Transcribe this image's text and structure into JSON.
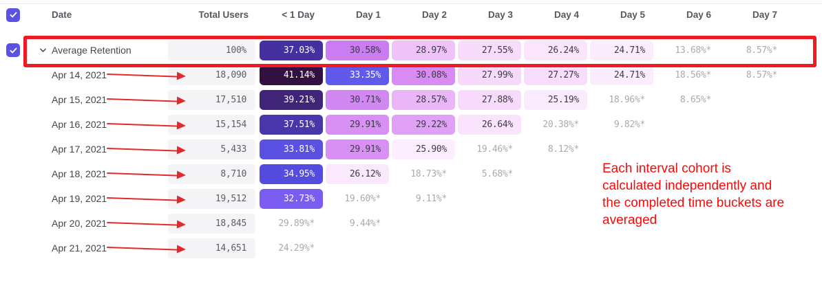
{
  "colors": {
    "checkbox_purple": "#5a52e2",
    "highlight_red": "#ee1b22",
    "arrow_red": "#e02a2b",
    "note_red": "#fb0808",
    "total_cell_bg": "#f4f4f6",
    "dark_text": "#3c3d44",
    "gray_text": "#a9a9b0",
    "white_text": "#ffffff",
    "header_border": "#e9e9eb"
  },
  "table": {
    "columns": [
      "Date",
      "Total Users",
      "< 1 Day",
      "Day 1",
      "Day 2",
      "Day 3",
      "Day 4",
      "Day 5",
      "Day 6",
      "Day 7"
    ],
    "rows": [
      {
        "label": "Average Retention",
        "is_average": true,
        "total": "100%",
        "cells": [
          {
            "v": "37.03%",
            "bg": "#44309e",
            "fg": "#ffffff"
          },
          {
            "v": "30.58%",
            "bg": "#ca7df1",
            "fg": "#3c3d44"
          },
          {
            "v": "28.97%",
            "bg": "#efc2f9",
            "fg": "#3c3d44"
          },
          {
            "v": "27.55%",
            "bg": "#f8dcfc",
            "fg": "#3c3d44"
          },
          {
            "v": "26.24%",
            "bg": "#fae5fd",
            "fg": "#3c3d44"
          },
          {
            "v": "24.71%",
            "bg": "#fcedfe",
            "fg": "#3c3d44"
          },
          {
            "v": "13.68%*",
            "bg": null,
            "fg": "#a9a9b0"
          },
          {
            "v": "8.57%*",
            "bg": null,
            "fg": "#a9a9b0"
          }
        ]
      },
      {
        "label": "Apr 14, 2021",
        "is_average": false,
        "total": "18,090",
        "cells": [
          {
            "v": "41.14%",
            "bg": "#321141",
            "fg": "#ffffff"
          },
          {
            "v": "33.35%",
            "bg": "#5f5aeb",
            "fg": "#ffffff"
          },
          {
            "v": "30.08%",
            "bg": "#d88cf3",
            "fg": "#3c3d44"
          },
          {
            "v": "27.99%",
            "bg": "#f7d9fc",
            "fg": "#3c3d44"
          },
          {
            "v": "27.27%",
            "bg": "#f8ddfc",
            "fg": "#3c3d44"
          },
          {
            "v": "24.71%",
            "bg": "#fcedfe",
            "fg": "#3c3d44"
          },
          {
            "v": "18.56%*",
            "bg": null,
            "fg": "#a9a9b0"
          },
          {
            "v": "8.57%*",
            "bg": null,
            "fg": "#a9a9b0"
          }
        ]
      },
      {
        "label": "Apr 15, 2021",
        "is_average": false,
        "total": "17,510",
        "cells": [
          {
            "v": "39.21%",
            "bg": "#402478",
            "fg": "#ffffff"
          },
          {
            "v": "30.71%",
            "bg": "#d288f3",
            "fg": "#3c3d44"
          },
          {
            "v": "28.57%",
            "bg": "#eab6f8",
            "fg": "#3c3d44"
          },
          {
            "v": "27.88%",
            "bg": "#f7dafc",
            "fg": "#3c3d44"
          },
          {
            "v": "25.19%",
            "bg": "#fbebfe",
            "fg": "#3c3d44"
          },
          {
            "v": "18.96%*",
            "bg": null,
            "fg": "#a9a9b0"
          },
          {
            "v": "8.65%*",
            "bg": null,
            "fg": "#a9a9b0"
          },
          null
        ]
      },
      {
        "label": "Apr 16, 2021",
        "is_average": false,
        "total": "15,154",
        "cells": [
          {
            "v": "37.51%",
            "bg": "#4a36ab",
            "fg": "#ffffff"
          },
          {
            "v": "29.91%",
            "bg": "#d890f4",
            "fg": "#3c3d44"
          },
          {
            "v": "29.22%",
            "bg": "#e0a0f6",
            "fg": "#3c3d44"
          },
          {
            "v": "26.64%",
            "bg": "#fae4fd",
            "fg": "#3c3d44"
          },
          {
            "v": "20.38%*",
            "bg": null,
            "fg": "#a9a9b0"
          },
          {
            "v": "9.82%*",
            "bg": null,
            "fg": "#a9a9b0"
          },
          null,
          null
        ]
      },
      {
        "label": "Apr 17, 2021",
        "is_average": false,
        "total": "5,433",
        "cells": [
          {
            "v": "33.81%",
            "bg": "#5a50e2",
            "fg": "#ffffff"
          },
          {
            "v": "29.91%",
            "bg": "#d890f4",
            "fg": "#3c3d44"
          },
          {
            "v": "25.90%",
            "bg": "#fceefe",
            "fg": "#3c3d44"
          },
          {
            "v": "19.46%*",
            "bg": null,
            "fg": "#a9a9b0"
          },
          {
            "v": "8.12%*",
            "bg": null,
            "fg": "#a9a9b0"
          },
          null,
          null,
          null
        ]
      },
      {
        "label": "Apr 18, 2021",
        "is_average": false,
        "total": "8,710",
        "cells": [
          {
            "v": "34.95%",
            "bg": "#544bdf",
            "fg": "#ffffff"
          },
          {
            "v": "26.12%",
            "bg": "#fae8fd",
            "fg": "#3c3d44"
          },
          {
            "v": "18.73%*",
            "bg": null,
            "fg": "#a9a9b0"
          },
          {
            "v": "5.68%*",
            "bg": null,
            "fg": "#a9a9b0"
          },
          null,
          null,
          null,
          null
        ]
      },
      {
        "label": "Apr 19, 2021",
        "is_average": false,
        "total": "19,512",
        "cells": [
          {
            "v": "32.73%",
            "bg": "#7b5cf1",
            "fg": "#ffffff"
          },
          {
            "v": "19.60%*",
            "bg": null,
            "fg": "#a9a9b0"
          },
          {
            "v": "9.11%*",
            "bg": null,
            "fg": "#a9a9b0"
          },
          null,
          null,
          null,
          null,
          null
        ]
      },
      {
        "label": "Apr 20, 2021",
        "is_average": false,
        "total": "18,845",
        "cells": [
          {
            "v": "29.89%*",
            "bg": null,
            "fg": "#a9a9b0"
          },
          {
            "v": "9.44%*",
            "bg": null,
            "fg": "#a9a9b0"
          },
          null,
          null,
          null,
          null,
          null,
          null
        ]
      },
      {
        "label": "Apr 21, 2021",
        "is_average": false,
        "total": "14,651",
        "cells": [
          {
            "v": "24.29%*",
            "bg": null,
            "fg": "#a9a9b0"
          },
          null,
          null,
          null,
          null,
          null,
          null,
          null
        ]
      }
    ]
  },
  "annotation": {
    "text": "Each interval cohort is calculated independently and the completed time buckets are averaged",
    "lines": [
      "Each interval cohort is",
      "calculated independently and",
      "the completed time buckets are",
      "averaged"
    ]
  },
  "icons": {
    "select_all": "checkbox-checked",
    "row_select": "checkbox-checked",
    "expand": "chevron-down",
    "row_pointer": "red-arrow"
  }
}
